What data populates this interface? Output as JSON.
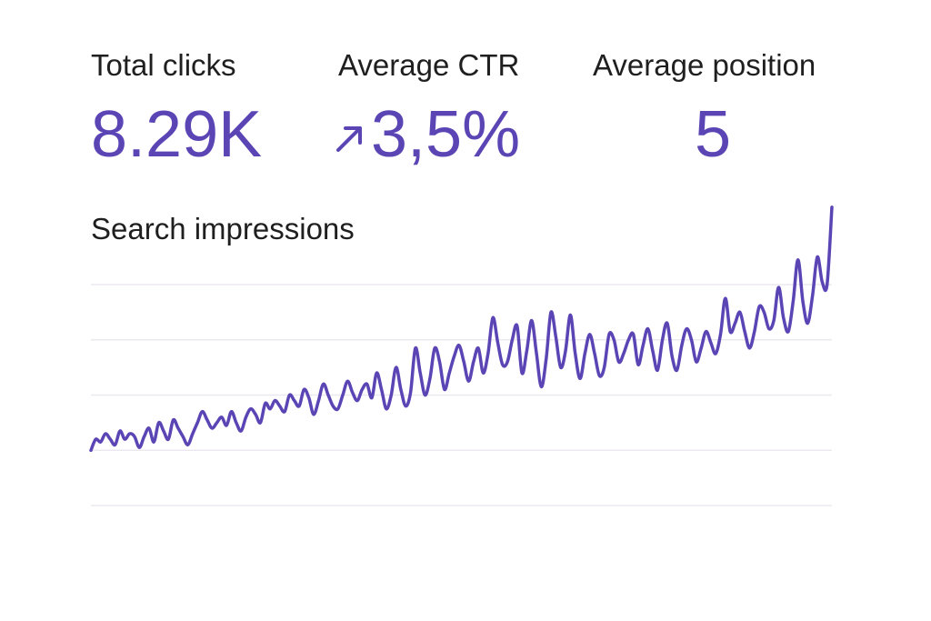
{
  "metrics": {
    "clicks": {
      "label": "Total clicks",
      "value": "8.29K"
    },
    "ctr": {
      "label": "Average CTR",
      "value": "3,5%",
      "trend_icon": "arrow-up-right-icon"
    },
    "position": {
      "label": "Average position",
      "value": "5"
    }
  },
  "colors": {
    "accent": "#5b45b5",
    "text": "#1f1f1f",
    "grid": "#ece8ef"
  },
  "chart_data": {
    "type": "line",
    "title": "Search impressions",
    "xlabel": "",
    "ylabel": "",
    "grid": true,
    "ylim": [
      0,
      100
    ],
    "gridlines": [
      0,
      20,
      40,
      60,
      80
    ],
    "series": [
      {
        "name": "Search impressions",
        "values": [
          20,
          24,
          23,
          26,
          24,
          22,
          27,
          24,
          26,
          25,
          21,
          25,
          28,
          23,
          30,
          27,
          24,
          31,
          28,
          25,
          22,
          26,
          30,
          34,
          31,
          28,
          30,
          32,
          29,
          34,
          30,
          27,
          32,
          35,
          33,
          30,
          37,
          35,
          38,
          36,
          34,
          40,
          38,
          36,
          42,
          39,
          33,
          38,
          44,
          40,
          36,
          35,
          40,
          45,
          41,
          38,
          42,
          44,
          39,
          48,
          42,
          35,
          40,
          50,
          42,
          36,
          41,
          57,
          48,
          40,
          46,
          57,
          52,
          42,
          48,
          54,
          58,
          52,
          45,
          52,
          57,
          48,
          55,
          68,
          59,
          51,
          52,
          60,
          65,
          48,
          56,
          67,
          55,
          43,
          53,
          70,
          61,
          50,
          56,
          69,
          55,
          46,
          55,
          62,
          55,
          47,
          50,
          62,
          60,
          52,
          55,
          60,
          62,
          51,
          58,
          64,
          56,
          49,
          60,
          66,
          54,
          49,
          58,
          64,
          60,
          52,
          57,
          63,
          59,
          55,
          62,
          75,
          63,
          66,
          70,
          63,
          57,
          63,
          72,
          70,
          64,
          67,
          79,
          68,
          63,
          74,
          89,
          74,
          66,
          76,
          90,
          81,
          80,
          108
        ]
      }
    ]
  }
}
